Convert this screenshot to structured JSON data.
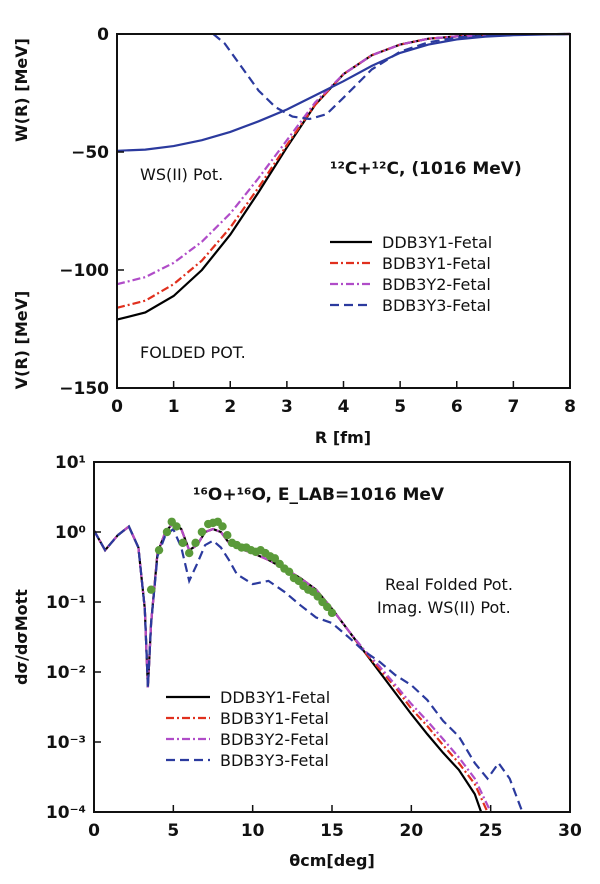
{
  "chart_data": [
    {
      "type": "line",
      "xlabel": "R [fm]",
      "ylabel_top": "W(R) [MeV]",
      "ylabel_bottom": "V(R) [MeV]",
      "xlim": [
        0,
        8
      ],
      "ylim": [
        -150,
        0
      ],
      "x_ticks": [
        "0",
        "1",
        "2",
        "3",
        "4",
        "5",
        "6",
        "7",
        "8"
      ],
      "y_ticks": [
        "0",
        "-50",
        "-100",
        "-150"
      ],
      "annotations": {
        "system": "¹²C+¹²C, (1016 MeV)",
        "imag_label": "WS(II) Pot.",
        "real_label": "FOLDED POT."
      },
      "legend_position": "center-right",
      "series": [
        {
          "name": "DDB3Y1-Fetal",
          "style": "solid",
          "color": "#000000",
          "x": [
            0,
            0.5,
            1,
            1.5,
            2,
            2.5,
            3,
            3.5,
            4,
            4.5,
            5,
            5.5,
            6,
            6.5,
            7,
            7.5,
            8
          ],
          "y": [
            -121,
            -118,
            -111,
            -100,
            -85,
            -67,
            -48,
            -30,
            -17,
            -9,
            -4.5,
            -2,
            -1,
            -0.5,
            -0.2,
            -0.1,
            0
          ]
        },
        {
          "name": "BDB3Y1-Fetal",
          "style": "dashdot",
          "color": "#e0301e",
          "x": [
            0,
            0.5,
            1,
            1.5,
            2,
            2.5,
            3,
            3.5,
            4,
            4.5,
            5,
            5.5,
            6,
            6.5,
            7,
            7.5,
            8
          ],
          "y": [
            -116,
            -113,
            -106,
            -96,
            -82,
            -65,
            -47,
            -30,
            -17,
            -9,
            -4.5,
            -2,
            -1,
            -0.5,
            -0.2,
            -0.1,
            0
          ]
        },
        {
          "name": "BDB3Y2-Fetal",
          "style": "dashdot",
          "color": "#b04cc8",
          "x": [
            0,
            0.5,
            1,
            1.5,
            2,
            2.5,
            3,
            3.5,
            4,
            4.5,
            5,
            5.5,
            6,
            6.5,
            7,
            7.5,
            8
          ],
          "y": [
            -106,
            -103,
            -97,
            -88,
            -76,
            -61,
            -45,
            -29,
            -17,
            -9,
            -4.5,
            -2,
            -1,
            -0.5,
            -0.2,
            -0.1,
            0
          ]
        },
        {
          "name": "BDB3Y3-Fetal",
          "style": "dashed",
          "color": "#2b3a9e",
          "x": [
            1.7,
            1.9,
            2.2,
            2.5,
            2.8,
            3.1,
            3.4,
            3.7,
            4,
            4.5,
            5,
            5.5,
            6,
            6.5,
            7,
            7.5,
            8
          ],
          "y": [
            0,
            -4,
            -14,
            -24,
            -31,
            -35,
            -36,
            -34,
            -27,
            -15,
            -7.5,
            -3.5,
            -1.5,
            -0.7,
            -0.3,
            -0.1,
            0
          ]
        },
        {
          "name": "",
          "style": "solid",
          "color": "#2b3a9e",
          "x": [
            0,
            0.5,
            1,
            1.5,
            2,
            2.5,
            3,
            3.5,
            4,
            4.5,
            5,
            5.5,
            6,
            6.5,
            7,
            7.5,
            8
          ],
          "y": [
            -49.5,
            -49,
            -47.5,
            -45,
            -41.5,
            -37,
            -32,
            -26,
            -20,
            -13.5,
            -8,
            -4.5,
            -2.3,
            -1.1,
            -0.5,
            -0.2,
            0
          ]
        }
      ]
    },
    {
      "type": "line",
      "xlabel": "θcm[deg]",
      "ylabel": "dσ/dσMott",
      "xlim": [
        0,
        30
      ],
      "ylim": [
        0.0001,
        10
      ],
      "yscale": "log",
      "x_ticks": [
        "0",
        "5",
        "10",
        "15",
        "20",
        "25",
        "30"
      ],
      "y_ticks": [
        "10¹",
        "10⁰",
        "10⁻¹",
        "10⁻²",
        "10⁻³",
        "10⁻⁴"
      ],
      "annotations": {
        "system": "¹⁶O+¹⁶O, E_LAB=1016 MeV",
        "real_label": "Real Folded Pot.",
        "imag_label": "Imag. WS(II) Pot."
      },
      "legend_position": "lower-left",
      "series": [
        {
          "name": "DDB3Y1-Fetal",
          "style": "solid",
          "color": "#000000",
          "x": [
            0,
            0.7,
            1.5,
            2.2,
            2.8,
            3.2,
            3.4,
            3.6,
            4,
            4.5,
            5,
            5.5,
            6,
            6.5,
            7,
            7.5,
            8,
            8.5,
            9,
            10,
            11,
            12,
            13,
            14,
            15,
            16,
            17,
            18,
            19,
            20,
            21,
            22,
            23,
            24,
            24.4
          ],
          "y": [
            1.05,
            0.55,
            0.9,
            1.2,
            0.6,
            0.08,
            0.006,
            0.05,
            0.5,
            1.0,
            1.35,
            1.1,
            0.55,
            0.65,
            1.0,
            1.1,
            1.0,
            0.7,
            0.6,
            0.5,
            0.4,
            0.3,
            0.22,
            0.15,
            0.08,
            0.04,
            0.02,
            0.01,
            0.005,
            0.0025,
            0.0013,
            0.0007,
            0.0004,
            0.00018,
            0.0001
          ]
        },
        {
          "name": "BDB3Y1-Fetal",
          "style": "dashdot",
          "color": "#e0301e",
          "x": [
            0,
            0.7,
            1.5,
            2.2,
            2.8,
            3.2,
            3.4,
            3.6,
            4,
            4.5,
            5,
            5.5,
            6,
            6.5,
            7,
            7.5,
            8,
            8.5,
            9,
            10,
            11,
            12,
            13,
            14,
            15,
            16,
            17,
            18,
            19,
            20,
            21,
            22,
            23,
            24,
            24.8
          ],
          "y": [
            1.05,
            0.55,
            0.9,
            1.2,
            0.6,
            0.08,
            0.006,
            0.05,
            0.5,
            1.0,
            1.35,
            1.1,
            0.55,
            0.65,
            1.0,
            1.1,
            1.0,
            0.7,
            0.6,
            0.5,
            0.4,
            0.3,
            0.22,
            0.15,
            0.08,
            0.04,
            0.02,
            0.011,
            0.006,
            0.003,
            0.0017,
            0.0009,
            0.0005,
            0.00025,
            0.0001
          ]
        },
        {
          "name": "BDB3Y2-Fetal",
          "style": "dashdot",
          "color": "#b04cc8",
          "x": [
            0,
            0.7,
            1.5,
            2.2,
            2.8,
            3.2,
            3.4,
            3.6,
            4,
            4.5,
            5,
            5.5,
            6,
            6.5,
            7,
            7.5,
            8,
            8.5,
            9,
            10,
            11,
            12,
            13,
            14,
            15,
            16,
            17,
            18,
            19,
            20,
            21,
            22,
            23,
            24,
            25
          ],
          "y": [
            1.05,
            0.55,
            0.9,
            1.2,
            0.6,
            0.08,
            0.006,
            0.05,
            0.5,
            1.0,
            1.35,
            1.1,
            0.55,
            0.65,
            1.0,
            1.1,
            1.0,
            0.7,
            0.6,
            0.5,
            0.4,
            0.3,
            0.22,
            0.15,
            0.08,
            0.04,
            0.021,
            0.012,
            0.0065,
            0.0035,
            0.002,
            0.0011,
            0.0006,
            0.0003,
            0.0001
          ]
        },
        {
          "name": "BDB3Y3-Fetal",
          "style": "dashed",
          "color": "#2b3a9e",
          "x": [
            0,
            0.7,
            1.5,
            2.2,
            2.8,
            3.2,
            3.4,
            3.6,
            4,
            4.5,
            5,
            5.5,
            6,
            6.5,
            7,
            7.5,
            8,
            8.5,
            9,
            10,
            11,
            12,
            13,
            14,
            15,
            16,
            17,
            18,
            19,
            20,
            21,
            22,
            23,
            24,
            24.8,
            25.5,
            26.2,
            27
          ],
          "y": [
            1.05,
            0.55,
            0.9,
            1.2,
            0.6,
            0.08,
            0.006,
            0.05,
            0.45,
            0.9,
            1.1,
            0.6,
            0.2,
            0.35,
            0.65,
            0.75,
            0.6,
            0.4,
            0.25,
            0.18,
            0.2,
            0.14,
            0.09,
            0.06,
            0.05,
            0.032,
            0.02,
            0.014,
            0.009,
            0.0065,
            0.004,
            0.002,
            0.0012,
            0.0005,
            0.0003,
            0.0005,
            0.0003,
            0.0001
          ]
        },
        {
          "name": "",
          "type": "scatter",
          "color": "#5a9a3a",
          "x": [
            3.6,
            4.1,
            4.6,
            4.9,
            5.2,
            5.6,
            6.0,
            6.4,
            6.8,
            7.2,
            7.5,
            7.8,
            8.1,
            8.4,
            8.7,
            9.0,
            9.3,
            9.6,
            9.9,
            10.2,
            10.5,
            10.8,
            11.1,
            11.4,
            11.7,
            12.0,
            12.3,
            12.6,
            12.9,
            13.2,
            13.5,
            13.8,
            14.1,
            14.4,
            14.7,
            15.0
          ],
          "y": [
            0.15,
            0.55,
            1.0,
            1.4,
            1.2,
            0.7,
            0.5,
            0.7,
            1.0,
            1.3,
            1.35,
            1.4,
            1.2,
            0.9,
            0.7,
            0.65,
            0.6,
            0.6,
            0.55,
            0.52,
            0.55,
            0.5,
            0.45,
            0.42,
            0.35,
            0.3,
            0.27,
            0.22,
            0.2,
            0.17,
            0.15,
            0.14,
            0.12,
            0.1,
            0.085,
            0.07
          ]
        }
      ]
    }
  ]
}
